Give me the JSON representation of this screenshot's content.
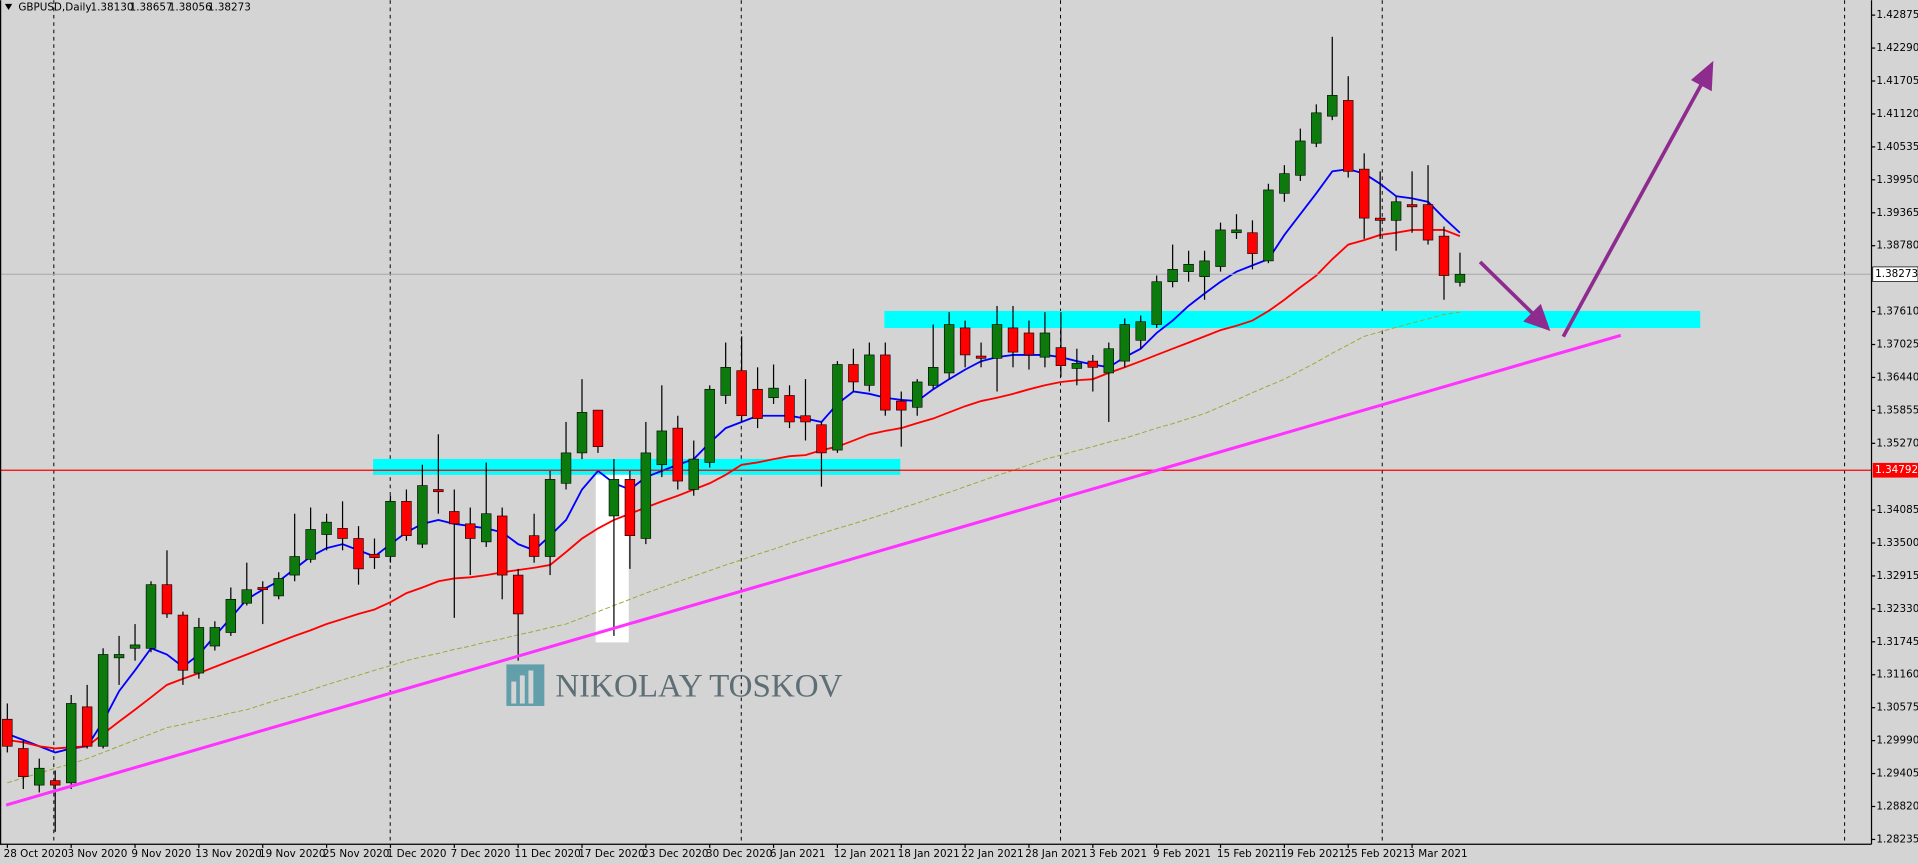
{
  "chart_data": {
    "type": "candlestick",
    "title": "GBPUSD,Daily",
    "ohlc_labels": [
      "1.38130",
      "1.38657",
      "1.38056",
      "1.38273"
    ],
    "watermark": "NIKOLAY TOSKOV",
    "up_color": "#0c7a0c",
    "down_color": "#ff0000",
    "level": 1.34792,
    "level_color": "#ff0000",
    "ylim": [
      1.2815,
      1.4314
    ],
    "yticks": [
      1.42875,
      {
        "value": 1.4229,
        "label": "1.42290"
      },
      1.41705,
      {
        "value": 1.4112,
        "label": "1.41120"
      },
      1.40535,
      {
        "value": 1.3995,
        "label": "1.39950"
      },
      1.39365,
      {
        "value": 1.3878,
        "label": "1.38780"
      },
      {
        "value": 1.3761,
        "label": "1.37610"
      },
      1.37025,
      {
        "value": 1.3644,
        "label": "1.36440"
      },
      1.35855,
      {
        "value": 1.3527,
        "label": "1.35270"
      },
      1.34085,
      {
        "value": 1.335,
        "label": "1.33500"
      },
      1.32915,
      {
        "value": 1.3233,
        "label": "1.32330"
      },
      1.31745,
      {
        "value": 1.3116,
        "label": "1.31160"
      },
      1.30575,
      {
        "value": 1.2999,
        "label": "1.29990"
      },
      1.29405,
      {
        "value": 1.2882,
        "label": "1.28820"
      },
      1.28235
    ],
    "categories": [
      "28 Oct 2020",
      null,
      null,
      null,
      "3 Nov 2020",
      null,
      null,
      null,
      "9 Nov 2020",
      null,
      null,
      null,
      "13 Nov 2020",
      null,
      null,
      null,
      "19 Nov 2020",
      null,
      null,
      null,
      "25 Nov 2020",
      null,
      null,
      null,
      "1 Dec 2020",
      null,
      null,
      null,
      "7 Dec 2020",
      null,
      null,
      null,
      "11 Dec 2020",
      null,
      null,
      null,
      "17 Dec 2020",
      null,
      null,
      null,
      "23 Dec 2020",
      null,
      null,
      null,
      "30 Dec 2020",
      null,
      null,
      null,
      "6 Jan 2021",
      null,
      null,
      null,
      "12 Jan 2021",
      null,
      null,
      null,
      "18 Jan 2021",
      null,
      null,
      null,
      "22 Jan 2021",
      null,
      null,
      null,
      "28 Jan 2021",
      null,
      null,
      null,
      "3 Feb 2021",
      null,
      null,
      null,
      "9 Feb 2021",
      null,
      null,
      null,
      "15 Feb 2021",
      null,
      null,
      null,
      "19 Feb 2021",
      null,
      null,
      null,
      "25 Feb 2021",
      null,
      null,
      null,
      "3 Mar 2021",
      null,
      null,
      null
    ],
    "open": [
      1.3037,
      1.2985,
      1.292,
      1.2928,
      1.2924,
      1.3059,
      1.2989,
      1.3146,
      1.3163,
      1.3163,
      1.3276,
      1.3222,
      1.3119,
      1.3167,
      1.3191,
      1.3243,
      1.3271,
      1.3256,
      1.3293,
      1.3321,
      1.3365,
      1.3376,
      1.3358,
      1.333,
      1.3326,
      1.3424,
      1.3348,
      1.3445,
      1.3406,
      1.3384,
      1.3352,
      1.3398,
      1.3293,
      1.3363,
      1.3326,
      1.3456,
      1.351,
      1.3586,
      1.3398,
      1.3463,
      1.3358,
      1.3489,
      1.3554,
      1.3445,
      1.3493,
      1.3612,
      1.3656,
      1.3623,
      1.3608,
      1.3612,
      1.3576,
      1.356,
      1.3515,
      1.3667,
      1.363,
      1.3684,
      1.3602,
      1.3591,
      1.363,
      1.3652,
      1.3732,
      1.3682,
      1.3678,
      1.3732,
      1.3723,
      1.368,
      1.3697,
      1.366,
      1.3673,
      1.3652,
      1.3673,
      1.371,
      1.3738,
      1.3814,
      1.3832,
      1.3823,
      1.3841,
      1.3901,
      1.3901,
      1.3851,
      1.3971,
      1.4003,
      1.406,
      1.4108,
      1.4136,
      1.4014,
      1.3927,
      1.3923,
      1.3951,
      1.3951,
      1.3895,
      1.3813
    ],
    "high": [
      1.3065,
      1.2999,
      1.2967,
      1.2946,
      1.308,
      1.3098,
      1.3163,
      1.3185,
      1.3206,
      1.3282,
      1.3337,
      1.3228,
      1.3217,
      1.3211,
      1.3271,
      1.3315,
      1.3282,
      1.3298,
      1.3402,
      1.3413,
      1.3402,
      1.3424,
      1.338,
      1.3358,
      1.3434,
      1.3445,
      1.3489,
      1.3543,
      1.3445,
      1.3413,
      1.3493,
      1.3413,
      1.3304,
      1.3402,
      1.3478,
      1.3565,
      1.3641,
      1.3586,
      1.3499,
      1.3478,
      1.3565,
      1.363,
      1.3576,
      1.3532,
      1.363,
      1.3706,
      1.3717,
      1.3662,
      1.3667,
      1.363,
      1.3641,
      1.3565,
      1.3673,
      1.3695,
      1.3706,
      1.3706,
      1.3619,
      1.3641,
      1.3738,
      1.376,
      1.3745,
      1.3706,
      1.3771,
      1.3771,
      1.3745,
      1.376,
      1.376,
      1.3695,
      1.3684,
      1.3706,
      1.3749,
      1.3754,
      1.3825,
      1.388,
      1.3869,
      1.3869,
      1.3919,
      1.3934,
      1.3923,
      1.3988,
      1.4021,
      1.4086,
      1.4129,
      1.4249,
      1.4179,
      1.4042,
      1.401,
      1.3966,
      1.401,
      1.4021,
      1.3912,
      1.38657
    ],
    "low": [
      1.2978,
      1.2913,
      1.2907,
      1.2837,
      1.2913,
      1.2985,
      1.2985,
      1.3098,
      1.3141,
      1.3156,
      1.3217,
      1.3098,
      1.3109,
      1.3159,
      1.3185,
      1.3239,
      1.3206,
      1.325,
      1.3282,
      1.3315,
      1.3337,
      1.3337,
      1.3276,
      1.3304,
      1.3315,
      1.3354,
      1.3341,
      1.3402,
      1.3217,
      1.3293,
      1.3343,
      1.325,
      1.3141,
      1.3315,
      1.3293,
      1.3445,
      1.3499,
      1.351,
      1.3185,
      1.3304,
      1.3348,
      1.3467,
      1.3445,
      1.3434,
      1.3484,
      1.3597,
      1.3565,
      1.3554,
      1.3597,
      1.3554,
      1.3532,
      1.345,
      1.351,
      1.3619,
      1.3619,
      1.3576,
      1.3521,
      1.3576,
      1.3623,
      1.3641,
      1.3662,
      1.3662,
      1.3619,
      1.3662,
      1.3658,
      1.3662,
      1.3645,
      1.363,
      1.3619,
      1.3565,
      1.3662,
      1.3695,
      1.3732,
      1.3804,
      1.3814,
      1.3782,
      1.3832,
      1.389,
      1.3836,
      1.3847,
      1.3956,
      1.3993,
      1.4053,
      1.4101,
      1.3999,
      1.389,
      1.389,
      1.3869,
      1.3901,
      1.388,
      1.3782,
      1.38056
    ],
    "close": [
      1.2989,
      1.2935,
      1.295,
      1.292,
      1.3065,
      1.2989,
      1.3152,
      1.3152,
      1.3169,
      1.3276,
      1.3224,
      1.3124,
      1.32,
      1.32,
      1.325,
      1.3267,
      1.3267,
      1.3287,
      1.3326,
      1.3374,
      1.3387,
      1.3358,
      1.3304,
      1.3324,
      1.3424,
      1.3363,
      1.3452,
      1.3441,
      1.3384,
      1.3358,
      1.3402,
      1.3293,
      1.3224,
      1.3326,
      1.3463,
      1.351,
      1.3582,
      1.3521,
      1.3463,
      1.3363,
      1.351,
      1.3549,
      1.346,
      1.3499,
      1.3623,
      1.3662,
      1.3576,
      1.3571,
      1.3625,
      1.3565,
      1.3565,
      1.351,
      1.3667,
      1.3636,
      1.3684,
      1.3586,
      1.3586,
      1.3636,
      1.3662,
      1.3738,
      1.3684,
      1.3678,
      1.3738,
      1.3689,
      1.3684,
      1.3723,
      1.3665,
      1.3669,
      1.3662,
      1.3695,
      1.3738,
      1.3743,
      1.3814,
      1.3836,
      1.3845,
      1.3851,
      1.3906,
      1.3906,
      1.3864,
      1.3977,
      1.4006,
      1.4064,
      1.4114,
      1.4145,
      1.401,
      1.3927,
      1.3923,
      1.3956,
      1.3947,
      1.3888,
      1.3825,
      1.38273
    ],
    "series": [
      {
        "color": "#0000ff",
        "values": [
          1.3011,
          1.3,
          1.2989,
          1.2978,
          1.2985,
          1.2989,
          1.3033,
          1.3087,
          1.3124,
          1.3163,
          1.3152,
          1.313,
          1.3152,
          1.3185,
          1.3217,
          1.325,
          1.3267,
          1.3282,
          1.3304,
          1.3326,
          1.3341,
          1.3348,
          1.3337,
          1.3326,
          1.3348,
          1.3369,
          1.3384,
          1.3391,
          1.3384,
          1.338,
          1.3376,
          1.3369,
          1.3348,
          1.3337,
          1.3363,
          1.3391,
          1.3445,
          1.3478,
          1.3456,
          1.3445,
          1.3467,
          1.3478,
          1.3489,
          1.3499,
          1.3528,
          1.3554,
          1.3565,
          1.3576,
          1.3576,
          1.3576,
          1.3571,
          1.3565,
          1.3597,
          1.3619,
          1.3615,
          1.3608,
          1.3604,
          1.3602,
          1.3623,
          1.3641,
          1.3658,
          1.3673,
          1.368,
          1.3684,
          1.3684,
          1.3684,
          1.368,
          1.3673,
          1.3667,
          1.3662,
          1.368,
          1.3695,
          1.3723,
          1.3745,
          1.3771,
          1.3793,
          1.3814,
          1.3832,
          1.3843,
          1.3854,
          1.3897,
          1.3934,
          1.3971,
          1.401,
          1.4014,
          1.4006,
          1.3988,
          1.3966,
          1.3962,
          1.3956,
          1.3927,
          1.3901
        ]
      },
      {
        "color": "#ff0000",
        "values": [
          1.3,
          1.2996,
          1.2989,
          1.2985,
          1.2987,
          1.2989,
          1.3011,
          1.3033,
          1.3054,
          1.3076,
          1.3098,
          1.3109,
          1.3119,
          1.313,
          1.3141,
          1.3152,
          1.3163,
          1.3174,
          1.3185,
          1.3195,
          1.3206,
          1.3215,
          1.3224,
          1.3232,
          1.3245,
          1.3261,
          1.3271,
          1.3282,
          1.3287,
          1.3289,
          1.3293,
          1.3298,
          1.3302,
          1.3306,
          1.3311,
          1.3334,
          1.3358,
          1.3376,
          1.3391,
          1.3402,
          1.3413,
          1.3424,
          1.3434,
          1.3445,
          1.3456,
          1.3471,
          1.3489,
          1.3493,
          1.3499,
          1.3504,
          1.3506,
          1.3515,
          1.3521,
          1.3532,
          1.3543,
          1.3549,
          1.3554,
          1.3563,
          1.3571,
          1.3582,
          1.3593,
          1.3602,
          1.3608,
          1.3615,
          1.3623,
          1.363,
          1.3636,
          1.3639,
          1.3641,
          1.3652,
          1.3662,
          1.3673,
          1.3684,
          1.3695,
          1.3706,
          1.3717,
          1.3728,
          1.3736,
          1.3745,
          1.3762,
          1.3782,
          1.3804,
          1.3825,
          1.3854,
          1.388,
          1.3888,
          1.3897,
          1.3901,
          1.3906,
          1.3906,
          1.3906,
          1.3895
        ]
      },
      {
        "color": "#9aaa3a",
        "values": [
          1.2924,
          1.2933,
          1.2941,
          1.295,
          1.2958,
          1.2967,
          1.2978,
          1.2989,
          1.3,
          1.3011,
          1.3022,
          1.3028,
          1.3035,
          1.3041,
          1.3048,
          1.3054,
          1.3063,
          1.3072,
          1.308,
          1.3089,
          1.3098,
          1.3107,
          1.3115,
          1.3124,
          1.3132,
          1.3141,
          1.3148,
          1.3154,
          1.3161,
          1.3167,
          1.3174,
          1.318,
          1.3187,
          1.3193,
          1.32,
          1.3206,
          1.3217,
          1.3228,
          1.3239,
          1.325,
          1.3261,
          1.3271,
          1.3281,
          1.3291,
          1.3301,
          1.3311,
          1.332,
          1.333,
          1.3339,
          1.3349,
          1.3358,
          1.3367,
          1.3376,
          1.3384,
          1.3393,
          1.3402,
          1.3412,
          1.3421,
          1.3431,
          1.344,
          1.345,
          1.346,
          1.347,
          1.3479,
          1.3489,
          1.3499,
          1.3506,
          1.3514,
          1.3521,
          1.3529,
          1.3536,
          1.3545,
          1.3554,
          1.3562,
          1.3571,
          1.358,
          1.3592,
          1.3604,
          1.3617,
          1.3629,
          1.3641,
          1.3656,
          1.3671,
          1.3687,
          1.3702,
          1.3717,
          1.3725,
          1.3733,
          1.3741,
          1.3748,
          1.3756,
          1.376
        ]
      }
    ]
  }
}
